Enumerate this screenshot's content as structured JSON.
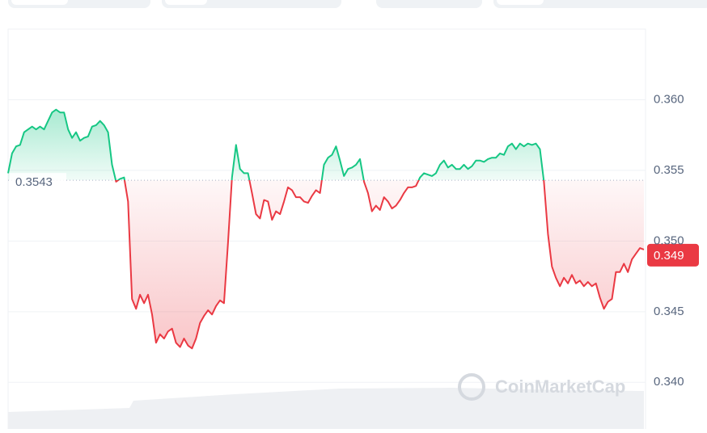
{
  "chart_data": {
    "type": "line",
    "series": [
      {
        "values": [
          0.3548,
          0.3562,
          0.3567,
          0.3568,
          0.3577,
          0.3579,
          0.3581,
          0.3579,
          0.3581,
          0.3579,
          0.3585,
          0.3591,
          0.3593,
          0.3591,
          0.3591,
          0.3579,
          0.3573,
          0.3577,
          0.3571,
          0.3573,
          0.3574,
          0.3581,
          0.3582,
          0.3585,
          0.3582,
          0.3577,
          0.3554,
          0.3542,
          0.3544,
          0.3545,
          0.3528,
          0.3459,
          0.3452,
          0.3462,
          0.3456,
          0.3462,
          0.3448,
          0.3428,
          0.3434,
          0.3431,
          0.3436,
          0.3438,
          0.3428,
          0.3425,
          0.3431,
          0.3426,
          0.3424,
          0.3431,
          0.3442,
          0.3447,
          0.3451,
          0.3448,
          0.3454,
          0.3458,
          0.3456,
          0.3499,
          0.3545,
          0.3568,
          0.3551,
          0.3548,
          0.3548,
          0.3534,
          0.3519,
          0.3516,
          0.3529,
          0.3528,
          0.3515,
          0.3521,
          0.3519,
          0.3528,
          0.3538,
          0.3536,
          0.3531,
          0.3531,
          0.3528,
          0.3527,
          0.3532,
          0.3536,
          0.3534,
          0.3554,
          0.3559,
          0.3561,
          0.3567,
          0.3557,
          0.3546,
          0.3551,
          0.3552,
          0.3554,
          0.3558,
          0.3542,
          0.3534,
          0.3521,
          0.3525,
          0.3522,
          0.3531,
          0.3528,
          0.3523,
          0.3525,
          0.3529,
          0.3534,
          0.3538,
          0.3538,
          0.3539,
          0.3545,
          0.3548,
          0.3547,
          0.3546,
          0.3548,
          0.3554,
          0.3557,
          0.3552,
          0.3554,
          0.3551,
          0.3551,
          0.3554,
          0.3551,
          0.3553,
          0.3557,
          0.3557,
          0.3556,
          0.3558,
          0.3559,
          0.3559,
          0.3562,
          0.3561,
          0.3567,
          0.3569,
          0.3565,
          0.3569,
          0.3567,
          0.3569,
          0.3568,
          0.3569,
          0.3565,
          0.3542,
          0.3505,
          0.3482,
          0.3474,
          0.3468,
          0.3474,
          0.347,
          0.3476,
          0.347,
          0.3472,
          0.3468,
          0.3471,
          0.3468,
          0.347,
          0.346,
          0.3452,
          0.3457,
          0.3459,
          0.3478,
          0.3478,
          0.3484,
          0.3478,
          0.3487,
          0.3491,
          0.3495,
          0.3494
        ]
      }
    ],
    "up_color": "#16c784",
    "down_color": "#ea3943",
    "baseline": 0.3543,
    "current_price": 0.349,
    "ylim": [
      0.3367,
      0.365
    ],
    "yticks": [
      {
        "value": 0.34,
        "label": "0.340"
      },
      0.345,
      {
        "value": 0.35,
        "label": "0.350"
      },
      0.355,
      {
        "value": 0.36,
        "label": "0.360"
      }
    ],
    "grid": true,
    "watermark": "CoinMarketCap"
  }
}
